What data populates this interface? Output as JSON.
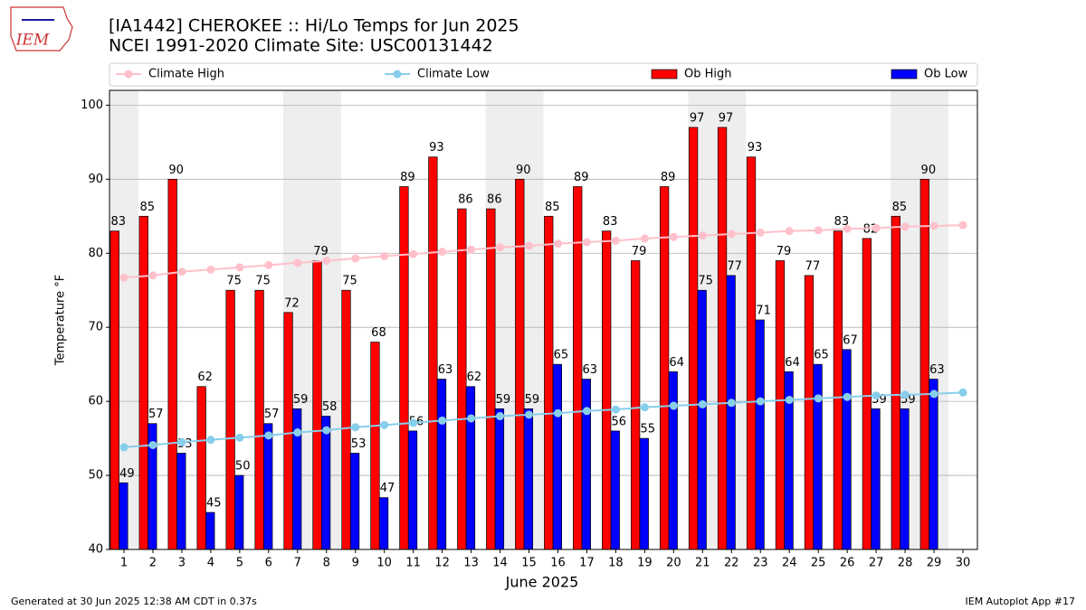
{
  "chart_data": {
    "type": "bar",
    "title": "[IA1442] CHEROKEE :: Hi/Lo Temps for Jun 2025",
    "subtitle": "NCEI 1991-2020 Climate Site: USC00131442",
    "x_label": "June 2025",
    "y_label": "Temperature °F",
    "x": [
      1,
      2,
      3,
      4,
      5,
      6,
      7,
      8,
      9,
      10,
      11,
      12,
      13,
      14,
      15,
      16,
      17,
      18,
      19,
      20,
      21,
      22,
      23,
      24,
      25,
      26,
      27,
      28,
      29,
      30
    ],
    "xlim": [
      0.5,
      30.5
    ],
    "ylim": [
      40,
      102
    ],
    "yticks": [
      40,
      50,
      60,
      70,
      80,
      90,
      100
    ],
    "grid": true,
    "shaded_days": [
      1,
      7,
      8,
      14,
      15,
      21,
      22,
      28,
      29
    ],
    "series": [
      {
        "name": "Climate High",
        "type": "line",
        "color": "#ffc0cb",
        "values": [
          76.7,
          77.0,
          77.5,
          77.8,
          78.1,
          78.4,
          78.7,
          79.0,
          79.3,
          79.6,
          79.9,
          80.2,
          80.5,
          80.8,
          81.0,
          81.3,
          81.5,
          81.7,
          82.0,
          82.2,
          82.4,
          82.6,
          82.8,
          83.0,
          83.1,
          83.3,
          83.4,
          83.6,
          83.7,
          83.8
        ]
      },
      {
        "name": "Climate Low",
        "type": "line",
        "color": "#87ceeb",
        "values": [
          53.8,
          54.1,
          54.5,
          54.8,
          55.1,
          55.4,
          55.8,
          56.1,
          56.5,
          56.8,
          57.1,
          57.4,
          57.7,
          58.0,
          58.2,
          58.4,
          58.7,
          58.9,
          59.2,
          59.4,
          59.6,
          59.8,
          60.0,
          60.2,
          60.4,
          60.6,
          60.8,
          60.9,
          61.0,
          61.2
        ]
      },
      {
        "name": "Ob High",
        "type": "bar",
        "color": "#ff0000",
        "values": [
          83,
          85,
          90,
          62,
          75,
          75,
          72,
          79,
          75,
          68,
          89,
          93,
          86,
          86,
          90,
          85,
          89,
          83,
          79,
          89,
          97,
          97,
          93,
          79,
          77,
          83,
          82,
          85,
          90,
          null
        ]
      },
      {
        "name": "Ob Low",
        "type": "bar",
        "color": "#0000ff",
        "values": [
          49,
          57,
          53,
          45,
          50,
          57,
          59,
          58,
          53,
          47,
          56,
          63,
          62,
          59,
          59,
          65,
          63,
          56,
          55,
          64,
          75,
          77,
          71,
          64,
          65,
          67,
          59,
          59,
          63,
          null
        ]
      }
    ]
  },
  "logo": {
    "text": "IEM"
  },
  "footer": {
    "left": "Generated at 30 Jun 2025 12:38 AM CDT in 0.37s",
    "right": "IEM Autoplot App #17"
  }
}
